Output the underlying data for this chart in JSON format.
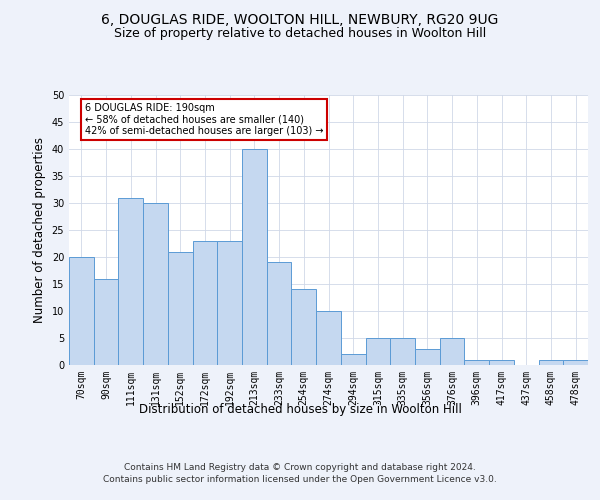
{
  "title1": "6, DOUGLAS RIDE, WOOLTON HILL, NEWBURY, RG20 9UG",
  "title2": "Size of property relative to detached houses in Woolton Hill",
  "xlabel": "Distribution of detached houses by size in Woolton Hill",
  "ylabel": "Number of detached properties",
  "categories": [
    "70sqm",
    "90sqm",
    "111sqm",
    "131sqm",
    "152sqm",
    "172sqm",
    "192sqm",
    "213sqm",
    "233sqm",
    "254sqm",
    "274sqm",
    "294sqm",
    "315sqm",
    "335sqm",
    "356sqm",
    "376sqm",
    "396sqm",
    "417sqm",
    "437sqm",
    "458sqm",
    "478sqm"
  ],
  "values": [
    20,
    16,
    31,
    30,
    21,
    23,
    23,
    40,
    19,
    14,
    10,
    2,
    5,
    5,
    3,
    5,
    1,
    1,
    0,
    1,
    1
  ],
  "bar_color": "#c5d8f0",
  "bar_edge_color": "#5b9bd5",
  "annotation_title": "6 DOUGLAS RIDE: 190sqm",
  "annotation_line1": "← 58% of detached houses are smaller (140)",
  "annotation_line2": "42% of semi-detached houses are larger (103) →",
  "annotation_box_color": "#ffffff",
  "annotation_box_edge": "#cc0000",
  "ylim": [
    0,
    50
  ],
  "yticks": [
    0,
    5,
    10,
    15,
    20,
    25,
    30,
    35,
    40,
    45,
    50
  ],
  "footer1": "Contains HM Land Registry data © Crown copyright and database right 2024.",
  "footer2": "Contains public sector information licensed under the Open Government Licence v3.0.",
  "background_color": "#eef2fa",
  "plot_background": "#ffffff",
  "grid_color": "#d0d8e8",
  "title1_fontsize": 10,
  "title2_fontsize": 9,
  "axis_label_fontsize": 8.5,
  "tick_fontsize": 7,
  "annotation_fontsize": 7,
  "footer_fontsize": 6.5
}
